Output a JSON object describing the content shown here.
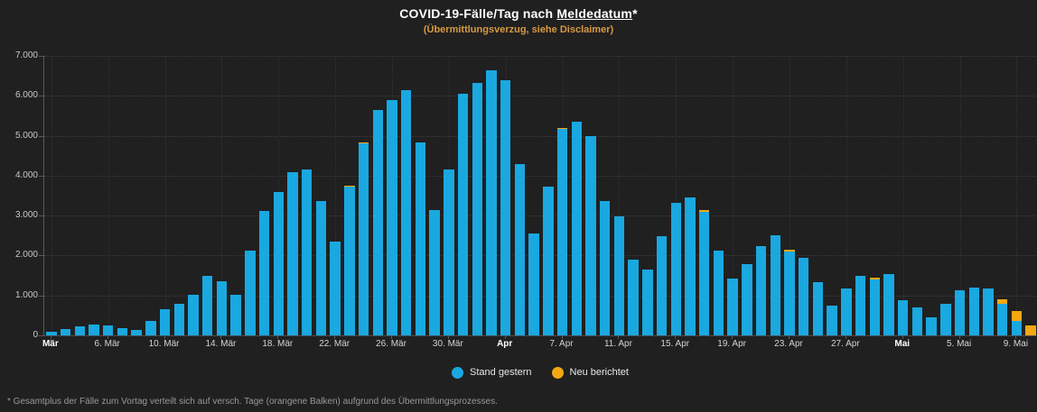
{
  "title": {
    "prefix": "COVID-19-Fälle/Tag nach ",
    "underlined": "Meldedatum",
    "suffix": "*"
  },
  "subtitle": "(Übermittlungsverzug, siehe Disclaimer)",
  "footnote": "* Gesamtplus der Fälle zum Vortag verteilt sich auf versch. Tage (orangene Balken) aufgrund des Übermittlungsprozesses.",
  "legend": {
    "items": [
      {
        "label": "Stand gestern",
        "color": "#1aa8e0"
      },
      {
        "label": "Neu berichtet",
        "color": "#f3a712"
      }
    ],
    "position": "bottom-center"
  },
  "colors": {
    "background": "#202020",
    "bar_blue": "#1aa8e0",
    "bar_orange": "#f3a712",
    "subtitle_orange": "#d79a41",
    "grid": "#3c3c3c",
    "axis": "#5a5a5a",
    "y_label": "#c9c9c9",
    "x_label": "#d4d4d4",
    "footnote_gray": "#989898"
  },
  "chart_data": {
    "type": "bar",
    "stacked": true,
    "title": "COVID-19-Fälle/Tag nach Meldedatum*",
    "subtitle": "(Übermittlungsverzug, siehe Disclaimer)",
    "xlabel": "",
    "ylabel": "",
    "ylim": [
      0,
      7000
    ],
    "y_ticks": [
      "0",
      "1.000",
      "2.000",
      "3.000",
      "4.000",
      "5.000",
      "6.000",
      "7.000"
    ],
    "grid": true,
    "legend_position": "bottom",
    "categories": [
      "2. Mär",
      "3. Mär",
      "4. Mär",
      "5. Mär",
      "6. Mär",
      "7. Mär",
      "8. Mär",
      "9. Mär",
      "10. Mär",
      "11. Mär",
      "12. Mär",
      "13. Mär",
      "14. Mär",
      "15. Mär",
      "16. Mär",
      "17. Mär",
      "18. Mär",
      "19. Mär",
      "20. Mär",
      "21. Mär",
      "22. Mär",
      "23. Mär",
      "24. Mär",
      "25. Mär",
      "26. Mär",
      "27. Mär",
      "28. Mär",
      "29. Mär",
      "30. Mär",
      "31. Mär",
      "1. Apr",
      "2. Apr",
      "3. Apr",
      "4. Apr",
      "5. Apr",
      "6. Apr",
      "7. Apr",
      "8. Apr",
      "9. Apr",
      "10. Apr",
      "11. Apr",
      "12. Apr",
      "13. Apr",
      "14. Apr",
      "15. Apr",
      "16. Apr",
      "17. Apr",
      "18. Apr",
      "19. Apr",
      "20. Apr",
      "21. Apr",
      "22. Apr",
      "23. Apr",
      "24. Apr",
      "25. Apr",
      "26. Apr",
      "27. Apr",
      "28. Apr",
      "29. Apr",
      "30. Apr",
      "1. Mai",
      "2. Mai",
      "3. Mai",
      "4. Mai",
      "5. Mai",
      "6. Mai",
      "7. Mai",
      "8. Mai",
      "9. Mai",
      "10. Mai"
    ],
    "series": [
      {
        "name": "Stand gestern",
        "color": "#1aa8e0",
        "values": [
          80,
          150,
          230,
          270,
          250,
          190,
          140,
          365,
          650,
          800,
          1020,
          1500,
          1360,
          1020,
          2120,
          3120,
          3600,
          4080,
          4150,
          3360,
          2360,
          3720,
          4800,
          5650,
          5900,
          6150,
          4840,
          3150,
          4150,
          6050,
          6320,
          6630,
          6380,
          4280,
          2550,
          3730,
          5170,
          5350,
          4980,
          3370,
          2980,
          1890,
          1640,
          2490,
          3330,
          3450,
          3100,
          2120,
          1420,
          1790,
          2240,
          2510,
          2110,
          1940,
          1340,
          740,
          1170,
          1490,
          1410,
          1530,
          890,
          690,
          460,
          780,
          1120,
          1200,
          1180,
          795,
          360,
          0
        ]
      },
      {
        "name": "Neu berichtet",
        "color": "#f3a712",
        "values": [
          0,
          0,
          0,
          0,
          0,
          0,
          0,
          0,
          0,
          0,
          0,
          0,
          0,
          0,
          0,
          0,
          0,
          0,
          0,
          0,
          0,
          30,
          30,
          0,
          0,
          0,
          0,
          0,
          0,
          0,
          0,
          0,
          0,
          0,
          0,
          0,
          30,
          0,
          0,
          0,
          0,
          0,
          0,
          0,
          0,
          0,
          30,
          0,
          0,
          0,
          0,
          0,
          30,
          0,
          0,
          0,
          0,
          0,
          30,
          0,
          0,
          0,
          0,
          0,
          0,
          0,
          0,
          115,
          250,
          260
        ]
      }
    ],
    "x_tick_labels": [
      {
        "index": 0,
        "label": "Mär",
        "bold": true
      },
      {
        "index": 4,
        "label": "6. Mär",
        "bold": false
      },
      {
        "index": 8,
        "label": "10. Mär",
        "bold": false
      },
      {
        "index": 12,
        "label": "14. Mär",
        "bold": false
      },
      {
        "index": 16,
        "label": "18. Mär",
        "bold": false
      },
      {
        "index": 20,
        "label": "22. Mär",
        "bold": false
      },
      {
        "index": 24,
        "label": "26. Mär",
        "bold": false
      },
      {
        "index": 28,
        "label": "30. Mär",
        "bold": false
      },
      {
        "index": 32,
        "label": "Apr",
        "bold": true
      },
      {
        "index": 36,
        "label": "7. Apr",
        "bold": false
      },
      {
        "index": 40,
        "label": "11. Apr",
        "bold": false
      },
      {
        "index": 44,
        "label": "15. Apr",
        "bold": false
      },
      {
        "index": 48,
        "label": "19. Apr",
        "bold": false
      },
      {
        "index": 52,
        "label": "23. Apr",
        "bold": false
      },
      {
        "index": 56,
        "label": "27. Apr",
        "bold": false
      },
      {
        "index": 60,
        "label": "Mai",
        "bold": true
      },
      {
        "index": 64,
        "label": "5. Mai",
        "bold": false
      },
      {
        "index": 68,
        "label": "9. Mai",
        "bold": false
      }
    ]
  }
}
